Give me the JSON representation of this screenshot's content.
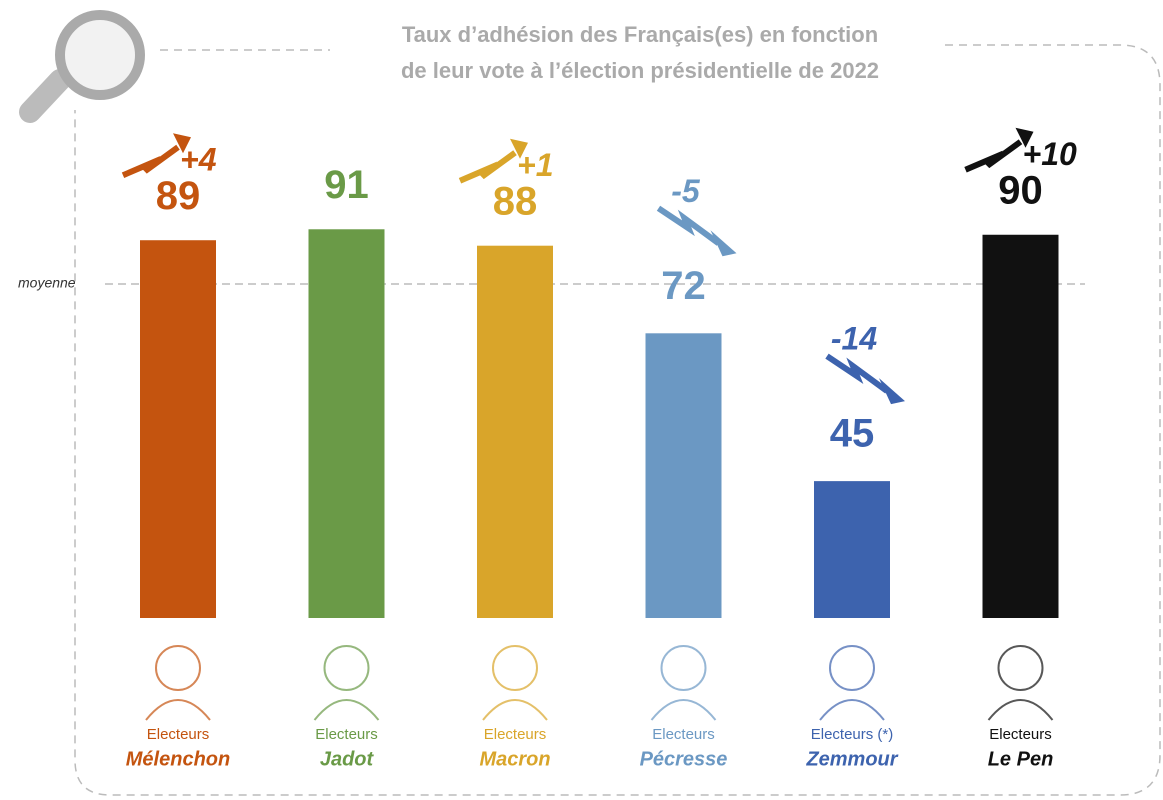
{
  "chart_data": {
    "type": "bar",
    "title": [
      "Taux d’adhésion des Français(es) en fonction",
      "de leur vote à l’élection présidentielle de 2022"
    ],
    "categories": [
      "Mélenchon",
      "Jadot",
      "Macron",
      "Pécresse",
      "Zemmour",
      "Le Pen"
    ],
    "category_prefixes": [
      "Electeurs",
      "Electeurs",
      "Electeurs",
      "Electeurs",
      "Electeurs (*)",
      "Electeurs"
    ],
    "values": [
      89,
      91,
      88,
      72,
      45,
      90
    ],
    "changes": [
      4,
      null,
      1,
      -5,
      -14,
      10
    ],
    "change_labels": [
      "+4",
      null,
      "+1",
      "-5",
      "-14",
      "+10"
    ],
    "colors": [
      "#c4540f",
      "#6a9a47",
      "#d9a52a",
      "#6b98c3",
      "#3d63ae",
      "#111111"
    ],
    "mean_line": {
      "label": "moyenne",
      "value": 81
    },
    "ylim": [
      20,
      100
    ]
  }
}
